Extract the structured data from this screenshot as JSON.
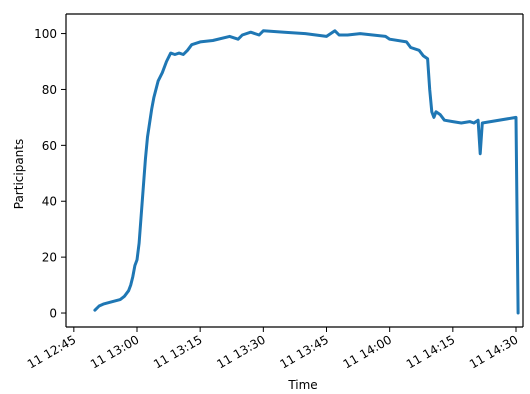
{
  "chart_data": {
    "type": "line",
    "title": "",
    "xlabel": "Time",
    "ylabel": "Participants",
    "x_is_time": true,
    "xlim": [
      "12:48",
      "14:31"
    ],
    "ylim": [
      -5,
      107
    ],
    "grid": false,
    "legend": "none",
    "x_ticks": [
      {
        "t": "12:45",
        "label": "11 12:45"
      },
      {
        "t": "13:00",
        "label": "11 13:00"
      },
      {
        "t": "13:15",
        "label": "11 13:15"
      },
      {
        "t": "13:30",
        "label": "11 13:30"
      },
      {
        "t": "13:45",
        "label": "11 13:45"
      },
      {
        "t": "14:00",
        "label": "11 14:00"
      },
      {
        "t": "14:15",
        "label": "11 14:15"
      },
      {
        "t": "14:30",
        "label": "11 14:30"
      }
    ],
    "y_ticks": [
      0,
      20,
      40,
      60,
      80,
      100
    ],
    "series": [
      {
        "color": "#1f77b4",
        "points": [
          [
            "12:50",
            1
          ],
          [
            "12:51",
            2.5
          ],
          [
            "12:52",
            3.2
          ],
          [
            "12:54",
            4
          ],
          [
            "12:56",
            4.8
          ],
          [
            "12:57",
            6
          ],
          [
            "12:58",
            8
          ],
          [
            "12:58:30",
            10
          ],
          [
            "12:59",
            13
          ],
          [
            "12:59:30",
            17
          ],
          [
            "13:00",
            19
          ],
          [
            "13:00:30",
            25
          ],
          [
            "13:01",
            35
          ],
          [
            "13:01:30",
            45
          ],
          [
            "13:02",
            55
          ],
          [
            "13:02:30",
            63
          ],
          [
            "13:03",
            68
          ],
          [
            "13:03:30",
            73
          ],
          [
            "13:04",
            77
          ],
          [
            "13:05",
            83
          ],
          [
            "13:06",
            86
          ],
          [
            "13:07",
            90
          ],
          [
            "13:08",
            93
          ],
          [
            "13:09",
            92.5
          ],
          [
            "13:10",
            93
          ],
          [
            "13:11",
            92.5
          ],
          [
            "13:12",
            94
          ],
          [
            "13:13",
            96
          ],
          [
            "13:15",
            97
          ],
          [
            "13:18",
            97.5
          ],
          [
            "13:22",
            99
          ],
          [
            "13:24",
            98
          ],
          [
            "13:25",
            99.5
          ],
          [
            "13:27",
            100.5
          ],
          [
            "13:29",
            99.5
          ],
          [
            "13:30",
            101
          ],
          [
            "13:35",
            100.5
          ],
          [
            "13:40",
            100
          ],
          [
            "13:45",
            99
          ],
          [
            "13:47",
            101
          ],
          [
            "13:48",
            99.5
          ],
          [
            "13:50",
            99.5
          ],
          [
            "13:53",
            100
          ],
          [
            "13:56",
            99.5
          ],
          [
            "13:59",
            99
          ],
          [
            "14:00",
            98
          ],
          [
            "14:04",
            97
          ],
          [
            "14:05",
            95
          ],
          [
            "14:07",
            94
          ],
          [
            "14:08",
            92
          ],
          [
            "14:09",
            91
          ],
          [
            "14:09:30",
            80
          ],
          [
            "14:10",
            72
          ],
          [
            "14:10:30",
            70
          ],
          [
            "14:11",
            72
          ],
          [
            "14:12",
            71
          ],
          [
            "14:13",
            69
          ],
          [
            "14:15",
            68.5
          ],
          [
            "14:17",
            68
          ],
          [
            "14:19",
            68.5
          ],
          [
            "14:20",
            68
          ],
          [
            "14:21",
            69
          ],
          [
            "14:21:30",
            57
          ],
          [
            "14:22",
            68
          ],
          [
            "14:30",
            70
          ],
          [
            "14:30:30",
            0
          ]
        ]
      }
    ]
  }
}
